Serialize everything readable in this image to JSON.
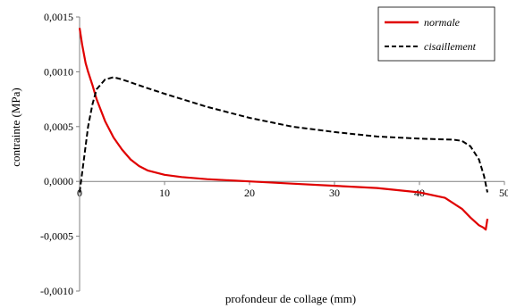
{
  "chart_data": {
    "type": "line",
    "title": "",
    "xlabel": "profondeur de collage (mm)",
    "ylabel": "contrainte (MPa)",
    "xlim": [
      0,
      50
    ],
    "ylim": [
      -0.001,
      0.0015
    ],
    "x_ticks": [
      "0",
      "10",
      "20",
      "30",
      "40",
      "50"
    ],
    "y_ticks": [
      "-0,0010",
      "-0,0005",
      "0,0000",
      "0,0005",
      "0,0010",
      "0,0015"
    ],
    "grid": false,
    "legend": {
      "placement": "top-right",
      "border": true
    },
    "series": [
      {
        "name": "normale",
        "color": "#e00000",
        "style": "solid",
        "points": [
          [
            0,
            0.0014
          ],
          [
            0.3,
            0.00125
          ],
          [
            0.7,
            0.00108
          ],
          [
            1,
            0.001
          ],
          [
            1.5,
            0.00088
          ],
          [
            2,
            0.00075
          ],
          [
            3,
            0.00055
          ],
          [
            4,
            0.0004
          ],
          [
            5,
            0.00029
          ],
          [
            6,
            0.0002
          ],
          [
            7,
            0.00014
          ],
          [
            8,
            0.0001
          ],
          [
            10,
            6e-05
          ],
          [
            12,
            4e-05
          ],
          [
            15,
            2e-05
          ],
          [
            20,
            0.0
          ],
          [
            25,
            -2e-05
          ],
          [
            30,
            -4e-05
          ],
          [
            35,
            -6e-05
          ],
          [
            40,
            -0.0001
          ],
          [
            43,
            -0.00015
          ],
          [
            45,
            -0.00025
          ],
          [
            46,
            -0.00033
          ],
          [
            47,
            -0.0004
          ],
          [
            47.5,
            -0.00042
          ],
          [
            47.8,
            -0.00044
          ],
          [
            48,
            -0.00034
          ]
        ]
      },
      {
        "name": "cisaillement",
        "color": "#000000",
        "style": "dashed",
        "points": [
          [
            0,
            -0.0001
          ],
          [
            0.5,
            0.0002
          ],
          [
            1,
            0.0005
          ],
          [
            1.5,
            0.0007
          ],
          [
            2,
            0.00084
          ],
          [
            3,
            0.00093
          ],
          [
            4,
            0.00095
          ],
          [
            5,
            0.00093
          ],
          [
            8,
            0.00085
          ],
          [
            10,
            0.0008
          ],
          [
            15,
            0.00068
          ],
          [
            20,
            0.00058
          ],
          [
            25,
            0.0005
          ],
          [
            30,
            0.00045
          ],
          [
            35,
            0.00041
          ],
          [
            40,
            0.00039
          ],
          [
            44,
            0.00038
          ],
          [
            45,
            0.00037
          ],
          [
            46,
            0.00032
          ],
          [
            47,
            0.0002
          ],
          [
            47.6,
            5e-05
          ],
          [
            48,
            -0.0001
          ]
        ]
      }
    ]
  }
}
